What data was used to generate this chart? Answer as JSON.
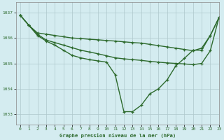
{
  "title": "Graphe pression niveau de la mer (hPa)",
  "bg_color": "#d4ecf0",
  "line_color": "#2d6a2d",
  "grid_color": "#aec8cc",
  "xlim": [
    -0.5,
    23
  ],
  "ylim": [
    1032.6,
    1037.4
  ],
  "xticks": [
    0,
    1,
    2,
    3,
    4,
    5,
    6,
    7,
    8,
    9,
    10,
    11,
    12,
    13,
    14,
    15,
    16,
    17,
    18,
    19,
    20,
    21,
    22,
    23
  ],
  "yticks": [
    1033,
    1034,
    1035,
    1036,
    1037
  ],
  "series": [
    [
      1036.9,
      1036.5,
      1036.2,
      1036.15,
      1036.1,
      1036.05,
      1036.0,
      1035.98,
      1035.95,
      1035.93,
      1035.9,
      1035.88,
      1035.85,
      1035.82,
      1035.8,
      1035.75,
      1035.7,
      1035.65,
      1035.6,
      1035.55,
      1035.5,
      1035.6,
      1036.1,
      1036.8
    ],
    [
      1036.9,
      1036.5,
      1036.15,
      1035.92,
      1035.82,
      1035.72,
      1035.62,
      1035.52,
      1035.45,
      1035.38,
      1035.3,
      1035.22,
      1035.18,
      1035.15,
      1035.12,
      1035.08,
      1035.05,
      1035.02,
      1035.0,
      1034.98,
      1034.95,
      1035.0,
      1035.5,
      1036.8
    ],
    [
      1036.9,
      1036.5,
      1036.1,
      1035.88,
      1035.72,
      1035.52,
      1035.32,
      1035.22,
      1035.15,
      1035.1,
      1035.05,
      1034.55,
      1033.1,
      1033.1,
      1033.35,
      1033.8,
      1034.0,
      1034.35,
      1034.9,
      1035.2,
      1035.52,
      1035.52,
      1036.1,
      1036.8
    ]
  ],
  "marker_size": 3.5,
  "linewidth": 1.0
}
